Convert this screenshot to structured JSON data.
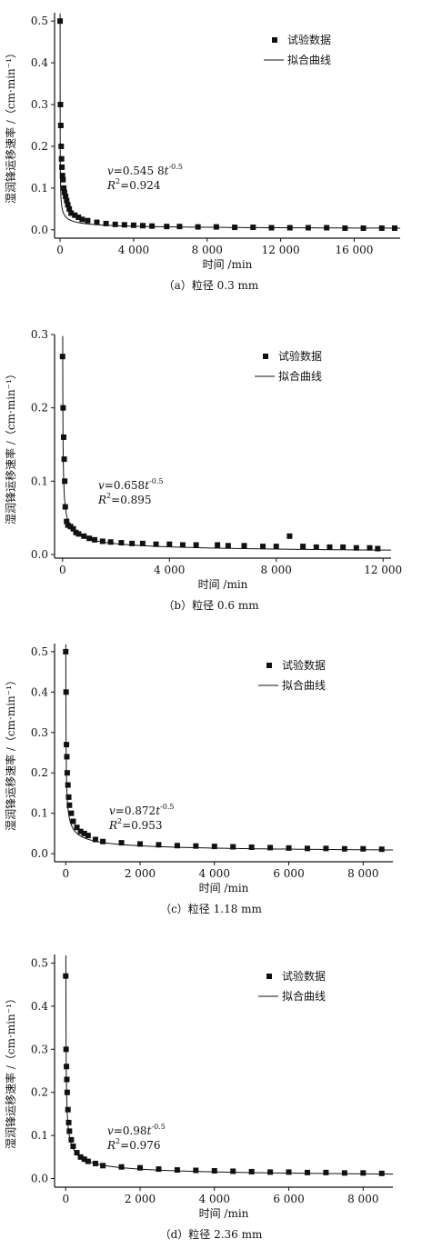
{
  "panels": [
    {
      "caption": "（a）粒径 0.3 mm",
      "chart_data": {
        "type": "scatter",
        "xlabel": "时间 /min",
        "ylabel": "湿润锋运移速率 /（cm·min⁻¹）",
        "xlim": [
          -300,
          18500
        ],
        "ylim": [
          -0.02,
          0.52
        ],
        "xticks": [
          0,
          4000,
          8000,
          12000,
          16000
        ],
        "xtick_labels": [
          "0",
          "4 000",
          "8 000",
          "12 000",
          "16 000"
        ],
        "yticks": [
          0.0,
          0.1,
          0.2,
          0.3,
          0.4,
          0.5
        ],
        "ytick_labels": [
          "0.0",
          "0.1",
          "0.2",
          "0.3",
          "0.4",
          "0.5"
        ],
        "legend": [
          "试验数据",
          "拟合曲线"
        ],
        "legend_position": "top-right",
        "equation": {
          "v": "v",
          "rhs": "=0.545 8",
          "t": "t",
          "exp": "-0.5",
          "r2_label": "R",
          "r2_sup": "2",
          "r2_value": "=0.924"
        },
        "fit": {
          "a": 0.5458,
          "b": -0.5
        },
        "series": [
          {
            "name": "试验数据",
            "x": [
              0,
              20,
              40,
              60,
              80,
              100,
              130,
              160,
              200,
              240,
              300,
              360,
              420,
              500,
              600,
              800,
              1000,
              1200,
              1500,
              2000,
              2500,
              3000,
              3500,
              4000,
              4500,
              5000,
              5800,
              6500,
              7500,
              8500,
              9500,
              10500,
              11500,
              12500,
              13500,
              14500,
              15500,
              16500,
              17500,
              18200
            ],
            "y": [
              0.5,
              0.3,
              0.25,
              0.2,
              0.17,
              0.15,
              0.13,
              0.12,
              0.1,
              0.09,
              0.08,
              0.07,
              0.06,
              0.05,
              0.04,
              0.035,
              0.03,
              0.025,
              0.022,
              0.018,
              0.015,
              0.013,
              0.012,
              0.011,
              0.01,
              0.009,
              0.008,
              0.008,
              0.007,
              0.007,
              0.006,
              0.006,
              0.005,
              0.005,
              0.005,
              0.005,
              0.004,
              0.004,
              0.004,
              0.004
            ]
          },
          {
            "name": "拟合曲线",
            "kind": "line"
          }
        ]
      }
    },
    {
      "caption": "（b）粒径 0.6 mm",
      "chart_data": {
        "type": "scatter",
        "xlabel": "时间 /min",
        "ylabel": "湿润锋运移速率 /（cm·min⁻¹）",
        "xlim": [
          -300,
          12300
        ],
        "ylim": [
          -0.005,
          0.3
        ],
        "xticks": [
          0,
          4000,
          8000,
          12000
        ],
        "xtick_labels": [
          "0",
          "4 000",
          "8 000",
          "12 000"
        ],
        "yticks": [
          0.0,
          0.1,
          0.2,
          0.3
        ],
        "ytick_labels": [
          "0.0",
          "0.1",
          "0.2",
          "0.3"
        ],
        "legend": [
          "试验数据",
          "拟合曲线"
        ],
        "legend_position": "top-right",
        "equation": {
          "v": "v",
          "rhs": "=0.658",
          "t": "t",
          "exp": "-0.5",
          "r2_label": "R",
          "r2_sup": "2",
          "r2_value": "=0.895"
        },
        "fit": {
          "a": 0.658,
          "b": -0.5
        },
        "series": [
          {
            "name": "试验数据",
            "x": [
              0,
              20,
              40,
              60,
              80,
              100,
              150,
              200,
              300,
              400,
              500,
              600,
              800,
              1000,
              1200,
              1500,
              1800,
              2200,
              2600,
              3000,
              3500,
              4000,
              4500,
              5000,
              5800,
              6200,
              6800,
              7500,
              8000,
              8500,
              9000,
              9500,
              10000,
              10500,
              11000,
              11500,
              11800
            ],
            "y": [
              0.27,
              0.2,
              0.16,
              0.13,
              0.1,
              0.065,
              0.045,
              0.04,
              0.038,
              0.035,
              0.03,
              0.028,
              0.025,
              0.022,
              0.02,
              0.018,
              0.017,
              0.016,
              0.015,
              0.015,
              0.014,
              0.014,
              0.013,
              0.013,
              0.013,
              0.012,
              0.012,
              0.011,
              0.011,
              0.025,
              0.011,
              0.01,
              0.01,
              0.01,
              0.009,
              0.009,
              0.008
            ]
          },
          {
            "name": "拟合曲线",
            "kind": "line"
          }
        ]
      }
    },
    {
      "caption": "（c）粒径 1.18 mm",
      "chart_data": {
        "type": "scatter",
        "xlabel": "时间 /min",
        "ylabel": "湿润锋运移速率 /（cm·min⁻¹）",
        "xlim": [
          -300,
          8800
        ],
        "ylim": [
          -0.02,
          0.52
        ],
        "xticks": [
          0,
          2000,
          4000,
          6000,
          8000
        ],
        "xtick_labels": [
          "0",
          "2 000",
          "4 000",
          "6 000",
          "8 000"
        ],
        "yticks": [
          0.0,
          0.1,
          0.2,
          0.3,
          0.4,
          0.5
        ],
        "ytick_labels": [
          "0.0",
          "0.1",
          "0.2",
          "0.3",
          "0.4",
          "0.5"
        ],
        "legend": [
          "试验数据",
          "拟合曲线"
        ],
        "legend_position": "top-right",
        "equation": {
          "v": "v",
          "rhs": "=0.872",
          "t": "t",
          "exp": "-0.5",
          "r2_label": "R",
          "r2_sup": "2",
          "r2_value": "=0.953"
        },
        "fit": {
          "a": 0.872,
          "b": -0.5
        },
        "series": [
          {
            "name": "试验数据",
            "x": [
              0,
              10,
              20,
              30,
              40,
              60,
              80,
              100,
              150,
              200,
              300,
              400,
              500,
              600,
              800,
              1000,
              1500,
              2000,
              2500,
              3000,
              3500,
              4000,
              4500,
              5000,
              5500,
              6000,
              6500,
              7000,
              7500,
              8000,
              8500
            ],
            "y": [
              0.5,
              0.4,
              0.27,
              0.24,
              0.2,
              0.17,
              0.14,
              0.12,
              0.1,
              0.08,
              0.065,
              0.055,
              0.05,
              0.045,
              0.035,
              0.03,
              0.027,
              0.024,
              0.022,
              0.02,
              0.019,
              0.018,
              0.017,
              0.016,
              0.015,
              0.014,
              0.013,
              0.013,
              0.012,
              0.012,
              0.011
            ]
          },
          {
            "name": "拟合曲线",
            "kind": "line"
          }
        ]
      }
    },
    {
      "caption": "（d）粒径 2.36 mm",
      "chart_data": {
        "type": "scatter",
        "xlabel": "时间 /min",
        "ylabel": "湿润锋运移速率 /（cm·min⁻¹）",
        "xlim": [
          -300,
          8800
        ],
        "ylim": [
          -0.02,
          0.52
        ],
        "xticks": [
          0,
          2000,
          4000,
          6000,
          8000
        ],
        "xtick_labels": [
          "0",
          "2 000",
          "4 000",
          "6 000",
          "8 000"
        ],
        "yticks": [
          0.0,
          0.1,
          0.2,
          0.3,
          0.4,
          0.5
        ],
        "ytick_labels": [
          "0.0",
          "0.1",
          "0.2",
          "0.3",
          "0.4",
          "0.5"
        ],
        "legend": [
          "试验数据",
          "拟合曲线"
        ],
        "legend_position": "top-right",
        "equation": {
          "v": "v",
          "rhs": "=0.98",
          "t": "t",
          "exp": "-0.5",
          "r2_label": "R",
          "r2_sup": "2",
          "r2_value": "=0.976"
        },
        "fit": {
          "a": 0.98,
          "b": -0.5
        },
        "series": [
          {
            "name": "试验数据",
            "x": [
              0,
              10,
              20,
              30,
              40,
              60,
              80,
              100,
              150,
              200,
              300,
              400,
              500,
              600,
              800,
              1000,
              1500,
              2000,
              2500,
              3000,
              3500,
              4000,
              4500,
              5000,
              5500,
              6000,
              6500,
              7000,
              7500,
              8000,
              8500
            ],
            "y": [
              0.47,
              0.3,
              0.26,
              0.23,
              0.2,
              0.16,
              0.13,
              0.11,
              0.09,
              0.075,
              0.06,
              0.05,
              0.045,
              0.04,
              0.035,
              0.03,
              0.027,
              0.025,
              0.022,
              0.02,
              0.019,
              0.018,
              0.017,
              0.016,
              0.015,
              0.015,
              0.014,
              0.014,
              0.013,
              0.013,
              0.012
            ]
          },
          {
            "name": "拟合曲线",
            "kind": "line"
          }
        ]
      }
    }
  ]
}
